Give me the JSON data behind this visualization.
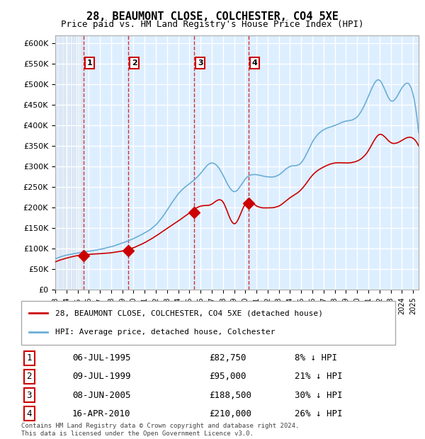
{
  "title": "28, BEAUMONT CLOSE, COLCHESTER, CO4 5XE",
  "subtitle": "Price paid vs. HM Land Registry's House Price Index (HPI)",
  "purchases": [
    {
      "num": 1,
      "date_str": "06-JUL-1995",
      "date_x": 1995.51,
      "price": 82750
    },
    {
      "num": 2,
      "date_str": "09-JUL-1999",
      "date_x": 1999.52,
      "price": 95000
    },
    {
      "num": 3,
      "date_str": "08-JUN-2005",
      "date_x": 2005.43,
      "price": 188500
    },
    {
      "num": 4,
      "date_str": "16-APR-2010",
      "date_x": 2010.29,
      "price": 210000
    }
  ],
  "purchase_pct": [
    "8% ↓ HPI",
    "21% ↓ HPI",
    "30% ↓ HPI",
    "26% ↓ HPI"
  ],
  "hpi_color": "#6baed6",
  "price_color": "#cc0000",
  "vline_color": "#cc0000",
  "bg_color": "#ddeeff",
  "hatch_color": "#bbccdd",
  "grid_color": "#ffffff",
  "ylim": [
    0,
    620000
  ],
  "yticks": [
    0,
    50000,
    100000,
    150000,
    200000,
    250000,
    300000,
    350000,
    400000,
    450000,
    500000,
    550000,
    600000
  ],
  "xlim_start": 1993.0,
  "xlim_end": 2025.5,
  "legend_label_price": "28, BEAUMONT CLOSE, COLCHESTER, CO4 5XE (detached house)",
  "legend_label_hpi": "HPI: Average price, detached house, Colchester",
  "footer": "Contains HM Land Registry data © Crown copyright and database right 2024.\nThis data is licensed under the Open Government Licence v3.0."
}
